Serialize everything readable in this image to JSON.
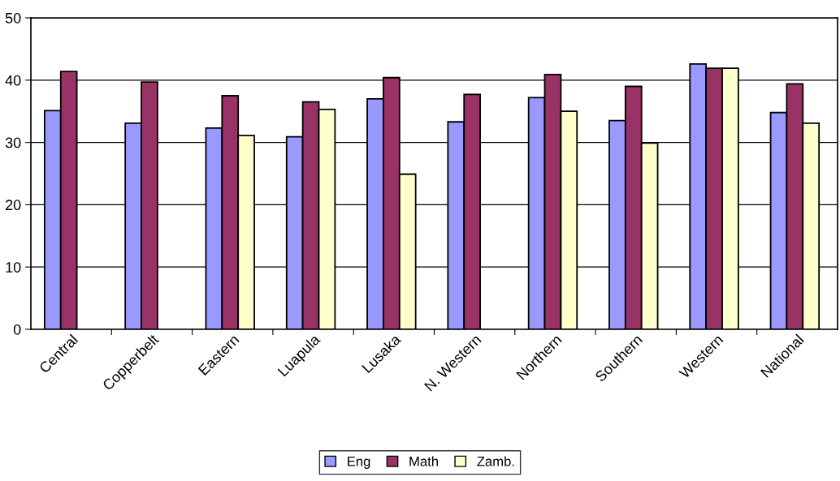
{
  "chart_data": {
    "type": "bar",
    "categories": [
      "Central",
      "Copperbelt",
      "Eastern",
      "Luapula",
      "Lusaka",
      "N. Western",
      "Northern",
      "Southern",
      "Western",
      "National"
    ],
    "series": [
      {
        "name": "Eng",
        "color": "#9999ff",
        "values": [
          35.1,
          33.1,
          32.3,
          30.9,
          37.0,
          33.3,
          37.2,
          33.5,
          42.6,
          34.8
        ]
      },
      {
        "name": "Math",
        "color": "#993366",
        "values": [
          41.4,
          39.7,
          37.5,
          36.5,
          40.4,
          37.7,
          40.9,
          39.0,
          41.9,
          39.4
        ]
      },
      {
        "name": "Zamb.",
        "color": "#ffffcc",
        "values": [
          null,
          null,
          31.1,
          35.3,
          24.9,
          null,
          35.0,
          29.9,
          41.9,
          33.1
        ]
      }
    ],
    "ylim": [
      0,
      50
    ],
    "yticks": [
      0,
      10,
      20,
      30,
      40,
      50
    ],
    "grid": "y",
    "legend": "bottom"
  }
}
